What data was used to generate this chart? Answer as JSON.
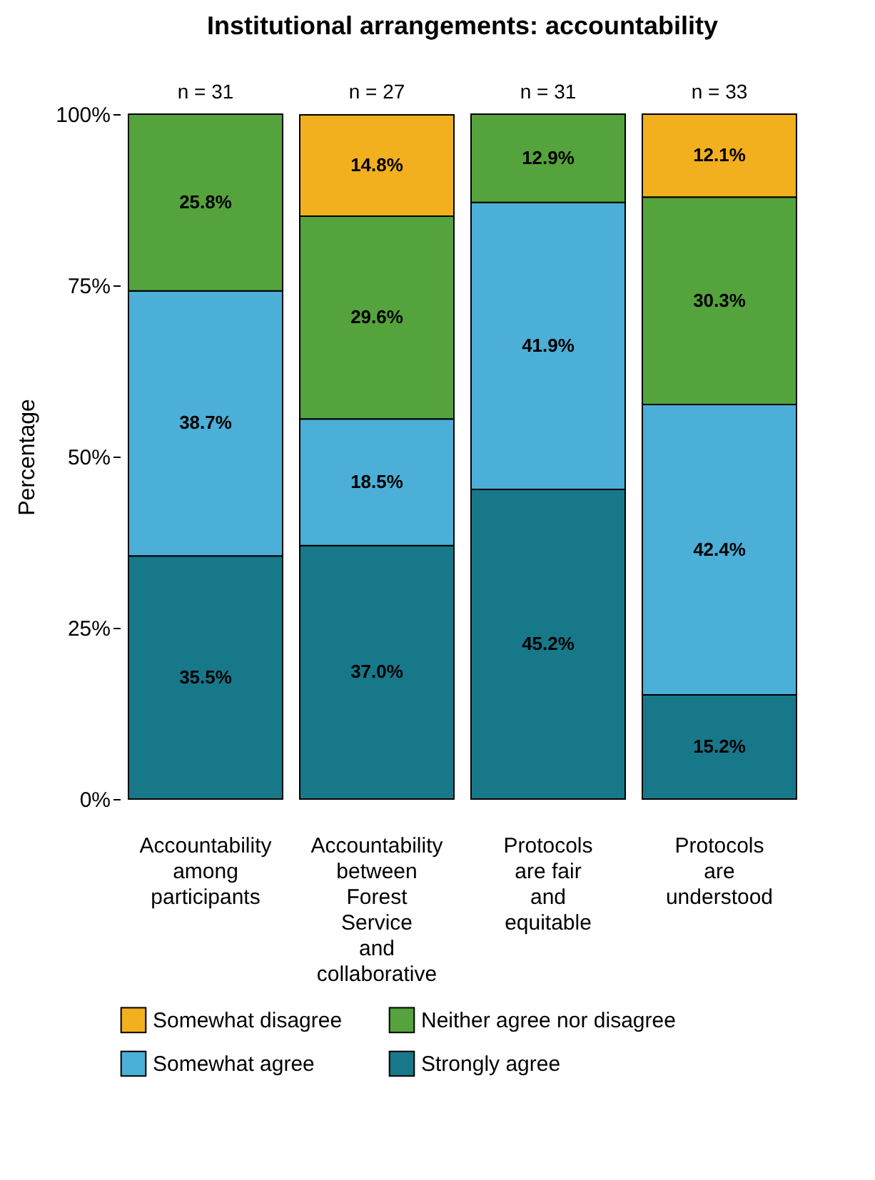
{
  "chart_data": {
    "type": "bar",
    "stacked": true,
    "title": "Institutional arrangements: accountability",
    "ylabel": "Percentage",
    "categories": [
      "Accountability among participants",
      "Accountability between Forest Service and collaborative",
      "Protocols are fair and equitable",
      "Protocols are understood"
    ],
    "series": [
      {
        "name": "Strongly agree",
        "color": "#17788a",
        "values": [
          35.5,
          37.0,
          45.2,
          15.2
        ],
        "value_labels": [
          "35.5%",
          "37.0%",
          "45.2%",
          "15.2%"
        ]
      },
      {
        "name": "Somewhat agree",
        "color": "#4bafd7",
        "values": [
          38.7,
          18.5,
          41.9,
          42.4
        ],
        "value_labels": [
          "38.7%",
          "18.5%",
          "41.9%",
          "42.4%"
        ]
      },
      {
        "name": "Neither agree nor disagree",
        "color": "#55a33c",
        "values": [
          25.8,
          29.6,
          12.9,
          30.3
        ],
        "value_labels": [
          "25.8%",
          "29.6%",
          "12.9%",
          "30.3%"
        ]
      },
      {
        "name": "Somewhat disagree",
        "color": "#f2b01e",
        "values": [
          null,
          14.8,
          null,
          12.1
        ],
        "value_labels": [
          null,
          "14.8%",
          null,
          "12.1%"
        ]
      }
    ],
    "ylim": [
      0,
      100
    ],
    "yticks": [
      {
        "value": 0,
        "label": "0%"
      },
      {
        "value": 25,
        "label": "25%"
      },
      {
        "value": 50,
        "label": "50%"
      },
      {
        "value": 75,
        "label": "75%"
      },
      {
        "value": 100,
        "label": "100%"
      }
    ],
    "grid": false,
    "legend": "bottom",
    "annotations": [
      {
        "text": "n = 31",
        "x": "Accountability among participants",
        "y": 100
      },
      {
        "text": "n = 27",
        "x": "Accountability between Forest Service and collaborative",
        "y": 100
      },
      {
        "text": "n = 31",
        "x": "Protocols are fair and equitable",
        "y": 100
      },
      {
        "text": "n = 33",
        "x": "Protocols are understood",
        "y": 100
      }
    ]
  }
}
